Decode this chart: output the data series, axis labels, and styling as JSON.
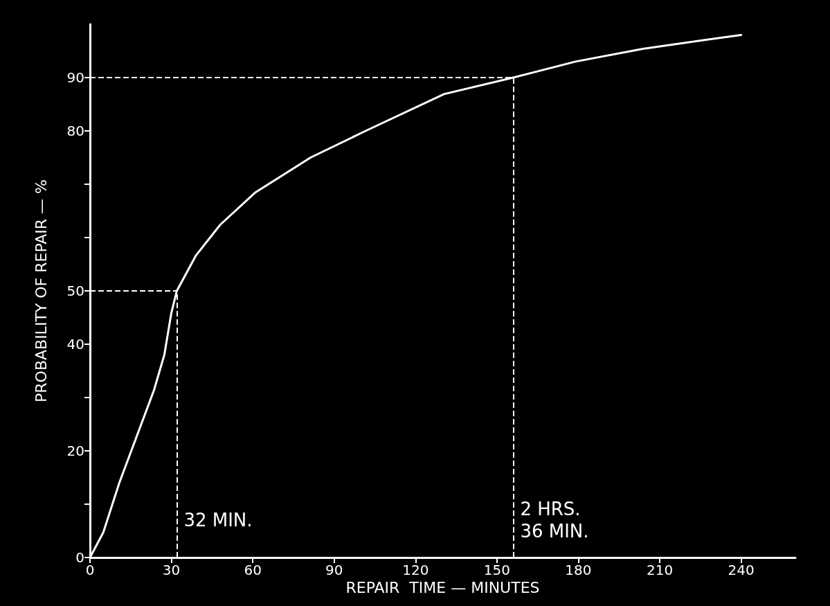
{
  "chart_data": {
    "type": "line",
    "xlabel": "REPAIR  TIME — MINUTES",
    "ylabel": "PROBABILITY OF REPAIR — %",
    "x": [
      0,
      4.9,
      10.8,
      17.2,
      23.6,
      27.4,
      30,
      32,
      39,
      48,
      60.8,
      81.3,
      101.6,
      130.5,
      156,
      179,
      203.8,
      240
    ],
    "series": [
      {
        "color": "#ffffff",
        "values": [
          0,
          4.7,
          14,
          22.7,
          31.4,
          38,
          45.9,
          50,
          56.6,
          62.4,
          68.4,
          75,
          80,
          86.9,
          90,
          93,
          95.4,
          98
        ]
      }
    ],
    "xlim": [
      0,
      260
    ],
    "xticks": [
      0,
      30,
      60,
      90,
      120,
      150,
      180,
      210,
      240
    ],
    "ylim": [
      0,
      100
    ],
    "yticks": [
      0,
      {
        "value": 10,
        "label": null
      },
      20,
      {
        "value": 30,
        "label": null
      },
      40,
      50,
      {
        "value": 60,
        "label": null
      },
      {
        "value": 70,
        "label": null
      },
      80,
      90
    ],
    "ref_lines": [
      {
        "axis": "x",
        "value": 32,
        "label": "32 MIN.",
        "line_style": "dashed",
        "color": "#ffffff"
      },
      {
        "axis": "x",
        "value": 156,
        "label": "2 HRS.\n36 MIN.",
        "line_style": "dashed",
        "color": "#ffffff"
      },
      {
        "axis": "y",
        "value": 50,
        "label": null,
        "line_style": "dashed",
        "color": "#ffffff"
      },
      {
        "axis": "y",
        "value": 90,
        "label": null,
        "line_style": "dashed",
        "color": "#ffffff"
      }
    ],
    "grid": false,
    "marker": "none",
    "line_style": "solid"
  }
}
